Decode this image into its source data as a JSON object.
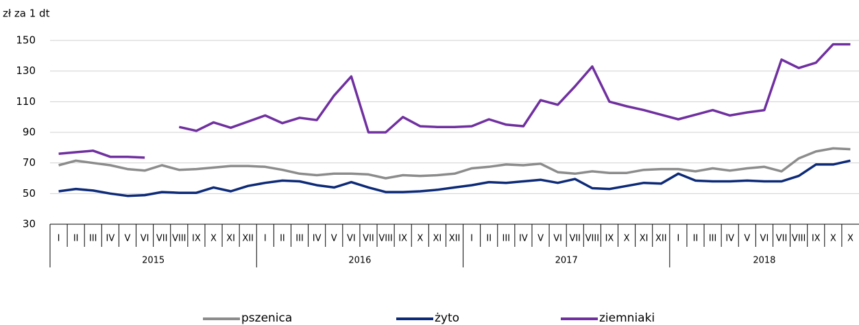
{
  "chart_data": {
    "type": "line",
    "y_label": "zł za 1 dt",
    "year_groups": [
      {
        "label": "2015",
        "months": [
          "I",
          "II",
          "III",
          "IV",
          "V",
          "VI",
          "VII",
          "VIII",
          "IX",
          "X",
          "XI",
          "XII"
        ]
      },
      {
        "label": "2016",
        "months": [
          "I",
          "II",
          "III",
          "IV",
          "V",
          "VI",
          "VII",
          "VIII",
          "IX",
          "X",
          "XI",
          "XII"
        ]
      },
      {
        "label": "2017",
        "months": [
          "I",
          "II",
          "III",
          "IV",
          "V",
          "VI",
          "VII",
          "VIII",
          "IX",
          "X",
          "XI",
          "XII"
        ]
      },
      {
        "label": "2018",
        "months": [
          "I",
          "II",
          "III",
          "IV",
          "V",
          "VI",
          "VII",
          "VIII",
          "IX",
          "X",
          "X"
        ]
      }
    ],
    "ylim": [
      30,
      150
    ],
    "yticks": [
      30,
      50,
      70,
      90,
      110,
      130,
      150
    ],
    "grid": true,
    "legend": "bottom",
    "series": [
      {
        "name": "pszenica",
        "color": "#8c8c8c",
        "values": [
          68.5,
          71.5,
          70,
          68.5,
          66,
          65,
          68.5,
          65.5,
          66,
          67,
          68,
          68,
          67.5,
          65.5,
          63,
          62,
          63,
          63,
          62.5,
          60,
          62,
          61.5,
          62,
          63,
          66.5,
          67.5,
          69,
          68.5,
          69.5,
          64,
          63,
          64.5,
          63.5,
          63.5,
          65.5,
          66,
          66,
          64.5,
          66.5,
          65,
          66.5,
          67.5,
          64.5,
          73,
          77.5,
          79.5,
          79
        ]
      },
      {
        "name": "żyto",
        "color": "#0d2a78",
        "values": [
          51.5,
          53,
          52,
          50,
          48.5,
          49,
          51,
          50.5,
          50.5,
          54,
          51.5,
          55,
          57,
          58.5,
          58,
          55.5,
          54,
          57.5,
          54,
          51,
          51,
          51.5,
          52.5,
          54,
          55.5,
          57.5,
          57,
          58,
          59,
          57,
          59.5,
          53.5,
          53,
          55,
          57,
          56.5,
          63,
          58.5,
          58,
          58,
          58.5,
          58,
          58,
          61.5,
          69,
          69,
          71.5
        ]
      },
      {
        "name": "ziemniaki",
        "color": "#7030a0",
        "values": [
          76,
          77,
          78,
          74,
          74,
          73.5,
          null,
          93.5,
          91,
          96.5,
          93,
          97,
          101,
          96,
          99.5,
          98,
          114,
          126.5,
          90,
          90,
          100,
          94,
          93.5,
          93.5,
          94,
          98.5,
          95,
          94,
          111,
          108,
          120,
          133,
          110,
          107,
          104.5,
          101.5,
          98.5,
          101.5,
          104.5,
          101,
          103,
          104.5,
          137.5,
          132,
          135.5,
          147.5,
          147.5
        ]
      }
    ]
  }
}
